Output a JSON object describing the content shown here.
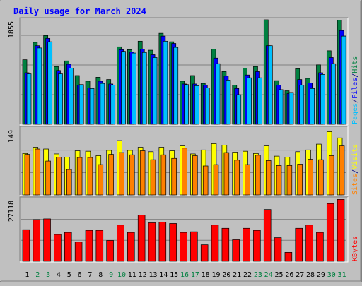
{
  "chart_data": {
    "type": "bar",
    "title": "Daily usage for March 2024",
    "categories": [
      "1",
      "2",
      "3",
      "4",
      "5",
      "6",
      "7",
      "8",
      "9",
      "10",
      "11",
      "12",
      "13",
      "14",
      "15",
      "16",
      "17",
      "18",
      "19",
      "20",
      "21",
      "22",
      "23",
      "24",
      "25",
      "26",
      "27",
      "28",
      "29",
      "30",
      "31"
    ],
    "weekend_days": [
      "2",
      "3",
      "9",
      "10",
      "16",
      "17",
      "23",
      "24",
      "30",
      "31"
    ],
    "panels": [
      {
        "id": "hits-files-pages",
        "ymax_label": "1855",
        "ymax": 1855,
        "ylabel_parts": [
          {
            "text": "Pages",
            "color": "#00c0ff"
          },
          {
            "text": "/",
            "color": "#000080"
          },
          {
            "text": "Files",
            "color": "#0000ff"
          },
          {
            "text": "/",
            "color": "#000080"
          },
          {
            "text": "Hits",
            "color": "#008040"
          }
        ],
        "series": [
          {
            "name": "Hits",
            "color": "#008040",
            "values": [
              1145,
              1455,
              1575,
              1025,
              1125,
              865,
              765,
              835,
              795,
              1375,
              1325,
              1475,
              1315,
              1615,
              1465,
              765,
              865,
              725,
              1335,
              935,
              695,
              995,
              1025,
              1855,
              775,
              595,
              985,
              815,
              1055,
              1305,
              1850
            ]
          },
          {
            "name": "Files",
            "color": "#0000ff",
            "values": [
              915,
              1395,
              1525,
              955,
              1065,
              695,
              645,
              765,
              715,
              1325,
              1285,
              1335,
              1235,
              1565,
              1435,
              715,
              715,
              695,
              1175,
              855,
              635,
              875,
              935,
              1395,
              695,
              545,
              795,
              735,
              915,
              1185,
              1665
            ]
          },
          {
            "name": "Pages",
            "color": "#00c0ff",
            "values": [
              895,
              1355,
              1465,
              895,
              995,
              705,
              635,
              725,
              695,
              1295,
              1265,
              1275,
              1185,
              1475,
              1365,
              705,
              685,
              645,
              1075,
              785,
              525,
              825,
              825,
              1395,
              615,
              565,
              695,
              635,
              885,
              1075,
              1565
            ]
          }
        ]
      },
      {
        "id": "visits-sites",
        "ymax_label": "149",
        "ymax": 149,
        "ylabel_parts": [
          {
            "text": "Sites",
            "color": "#ff8000"
          },
          {
            "text": "/",
            "color": "#000080"
          },
          {
            "text": "Visits",
            "color": "#ffff00"
          }
        ],
        "series": [
          {
            "name": "Visits",
            "color": "#ffff00",
            "values": [
              93,
              107,
              103,
              92,
              85,
              99,
              98,
              88,
              100,
              122,
              100,
              107,
              97,
              107,
              99,
              110,
              92,
              101,
              115,
              112,
              96,
              98,
              93,
              110,
              87,
              85,
              97,
              101,
              114,
              142,
              128
            ]
          },
          {
            "name": "Sites",
            "color": "#ff8000",
            "values": [
              91,
              103,
              76,
              85,
              57,
              84,
              84,
              68,
              91,
              95,
              90,
              99,
              79,
              90,
              82,
              105,
              88,
              65,
              68,
              95,
              78,
              68,
              89,
              77,
              66,
              66,
              69,
              80,
              79,
              88,
              110
            ]
          }
        ]
      },
      {
        "id": "kbytes",
        "ymax_label": "27118",
        "ymax": 27118,
        "ylabel_parts": [
          {
            "text": "KBytes",
            "color": "#ff0000"
          }
        ],
        "series": [
          {
            "name": "KBytes",
            "color": "#ff0000",
            "values": [
              13800,
              18200,
              18500,
              11700,
              12600,
              8400,
              13500,
              13500,
              9100,
              15800,
              12600,
              20200,
              16800,
              17100,
              16500,
              12600,
              12900,
              7200,
              15800,
              14400,
              9400,
              14400,
              13500,
              22600,
              10300,
              3900,
              14400,
              15800,
              12600,
              25200,
              27000
            ]
          }
        ]
      }
    ]
  }
}
